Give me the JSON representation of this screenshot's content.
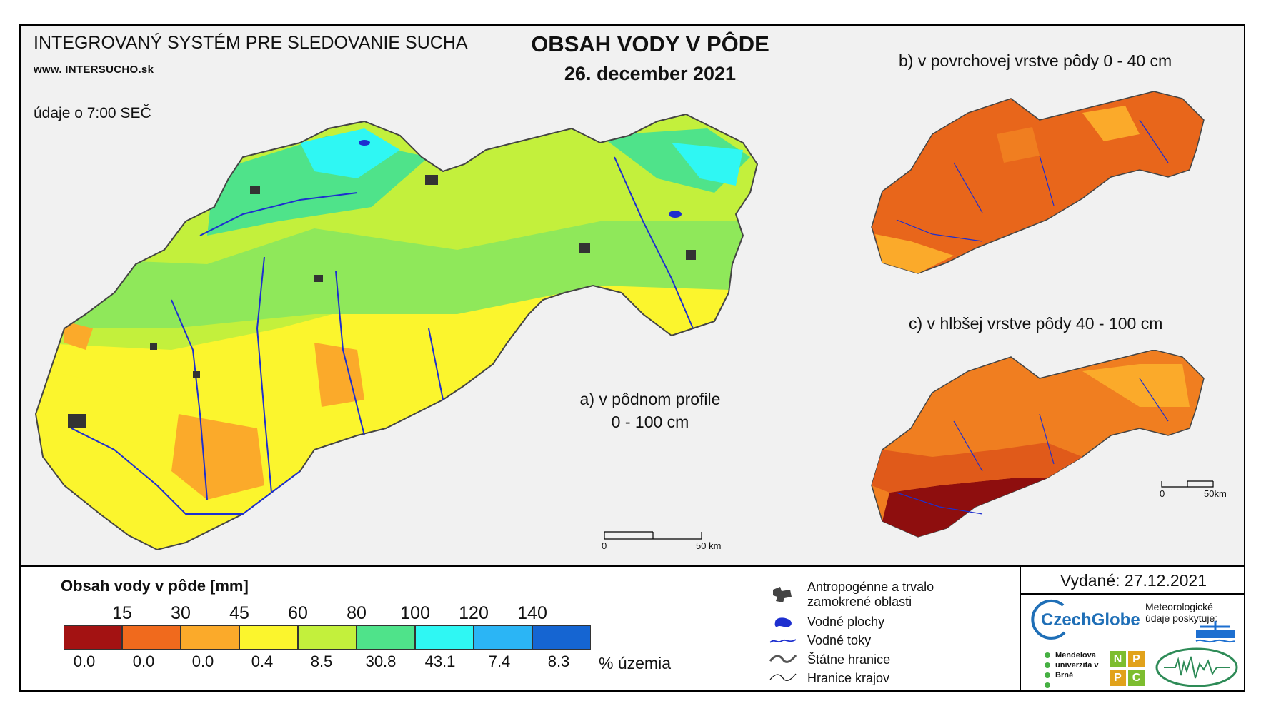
{
  "header": {
    "system_title": "INTEGROVANÝ SYSTÉM PRE SLEDOVANIE SUCHA",
    "website_prefix": "www. INTER",
    "website_highlight": "SUCHO",
    "website_suffix": ".sk",
    "data_time": "údaje o 7:00 SEČ",
    "main_title": "OBSAH VODY V PÔDE",
    "main_date": "26. december 2021"
  },
  "maps": {
    "a_label_line1": "a) v pôdnom profile",
    "a_label_line2": "0 - 100 cm",
    "b_label": "b) v povrchovej vrstve pôdy 0 - 40 cm",
    "c_label": "c) v hlbšej vrstve pôdy 40 - 100 cm",
    "scale_main_start": "0",
    "scale_main_end": "50 km",
    "scale_small_start": "0",
    "scale_small_end": "50km"
  },
  "legend": {
    "title": "Obsah vody v pôde  [mm]",
    "breaks": [
      "15",
      "30",
      "45",
      "60",
      "80",
      "100",
      "120",
      "140"
    ],
    "classes": [
      {
        "color": "#a31212",
        "percent": "0.0"
      },
      {
        "color": "#f06a1d",
        "percent": "0.0"
      },
      {
        "color": "#fbaa2a",
        "percent": "0.0"
      },
      {
        "color": "#fbf52d",
        "percent": "0.4"
      },
      {
        "color": "#c3f03c",
        "percent": "8.5"
      },
      {
        "color": "#4fe38a",
        "percent": "30.8"
      },
      {
        "color": "#2ff7f3",
        "percent": "43.1"
      },
      {
        "color": "#2bb5f5",
        "percent": "7.4"
      },
      {
        "color": "#1565d2",
        "percent": "8.3"
      }
    ],
    "percent_unit": "% územia"
  },
  "symbols": {
    "anthropogenic_line1": "Antropogénne a trvalo",
    "anthropogenic_line2": "zamokrené oblasti",
    "water_bodies": "Vodné plochy",
    "water_streams": "Vodné toky",
    "state_border": "Štátne hranice",
    "region_border": "Hranice krajov"
  },
  "footer": {
    "issued": "Vydané: 27.12.2021",
    "czechglobe": "CzechGlobe",
    "meteo_text": "Meteorologické údaje poskytuje:",
    "mendel_text": "Mendelova univerzita v Brně",
    "nppc_letters": [
      "N",
      "P",
      "P",
      "C"
    ]
  }
}
